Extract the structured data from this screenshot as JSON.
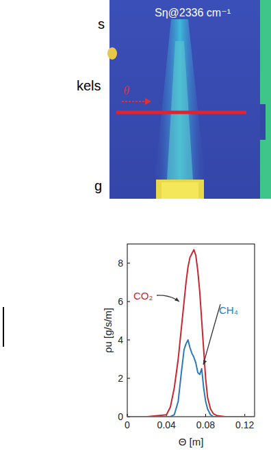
{
  "slide": {
    "fragments": [
      "s",
      "kels",
      "g"
    ],
    "image_label": "Sη@2336 cm⁻¹",
    "arrow_label": "θ"
  },
  "chart_data": {
    "type": "line",
    "x_label": "Θ [m]",
    "y_label": "ρu [g/s/m]",
    "x": [
      0,
      0.02,
      0.04,
      0.044,
      0.048,
      0.052,
      0.055,
      0.058,
      0.06,
      0.062,
      0.064,
      0.066,
      0.068,
      0.07,
      0.072,
      0.074,
      0.076,
      0.078,
      0.08,
      0.082,
      0.085,
      0.088,
      0.092,
      0.1,
      0.12,
      0.13
    ],
    "series": [
      {
        "name": "CO₂",
        "color": "#c8262e",
        "values": [
          0,
          0,
          0.1,
          0.5,
          1.5,
          3,
          4.5,
          6,
          7,
          7.8,
          8.3,
          8.5,
          8.7,
          8.4,
          7.6,
          6.5,
          5,
          3.5,
          2,
          1,
          0.4,
          0.15,
          0.05,
          0,
          0,
          0
        ]
      },
      {
        "name": "CH₄",
        "color": "#2b78b6",
        "values": [
          0,
          0,
          0,
          0,
          0.1,
          0.8,
          2.2,
          3.5,
          3.8,
          4,
          3.6,
          3.3,
          3.1,
          2.8,
          2.3,
          2.2,
          2.5,
          1.5,
          0.8,
          0.4,
          0.1,
          0,
          0,
          0,
          0,
          0
        ]
      }
    ],
    "xlim": [
      0,
      0.13
    ],
    "xticks": [
      0,
      0.04,
      0.08,
      0.12
    ],
    "ylim": [
      0,
      9
    ],
    "yticks": [
      0,
      2,
      4,
      6,
      8
    ],
    "grid": false
  }
}
